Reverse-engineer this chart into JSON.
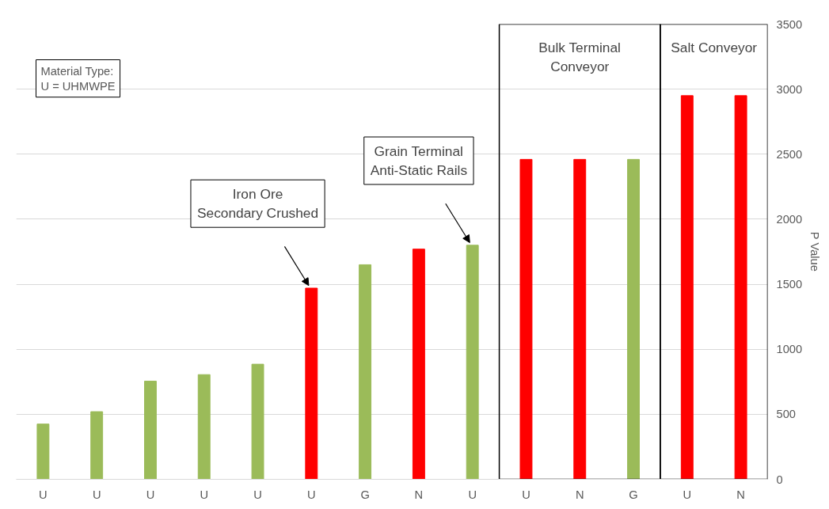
{
  "chart_data": {
    "type": "bar",
    "categories": [
      "U",
      "U",
      "U",
      "U",
      "U",
      "U",
      "G",
      "N",
      "U",
      "U",
      "N",
      "G",
      "U",
      "N"
    ],
    "values": [
      425,
      520,
      755,
      805,
      885,
      1470,
      1650,
      1770,
      1800,
      2460,
      2460,
      2460,
      2950,
      2950
    ],
    "colors": [
      "#9bbb59",
      "#9bbb59",
      "#9bbb59",
      "#9bbb59",
      "#9bbb59",
      "#ff0000",
      "#9bbb59",
      "#ff0000",
      "#9bbb59",
      "#ff0000",
      "#ff0000",
      "#9bbb59",
      "#ff0000",
      "#ff0000"
    ],
    "ylabel": "P Value",
    "ylim": [
      0,
      3500
    ],
    "yticks": [
      0,
      500,
      1000,
      1500,
      2000,
      2500,
      3000,
      3500
    ],
    "grid": "y",
    "annotations": [
      "Material Type:\nU = UHMWPE",
      "Iron Ore\nSecondary Crushed",
      "Grain Terminal\nAnti-Static Rails",
      "Bulk Terminal\nConveyor",
      "Salt Conveyor"
    ]
  }
}
